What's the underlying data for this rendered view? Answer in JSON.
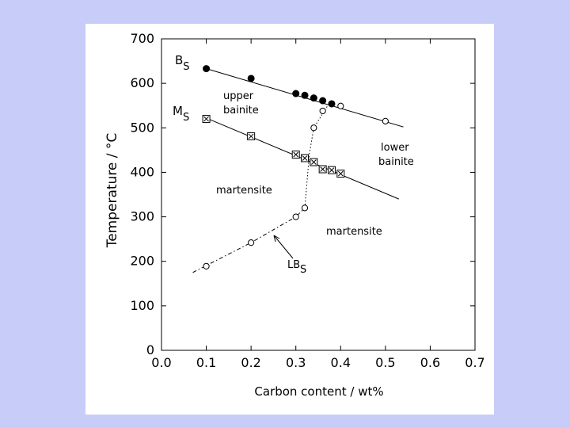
{
  "chart_data": {
    "type": "scatter",
    "xlabel": "Carbon content / wt%",
    "ylabel": "Temperature / °C",
    "xlim": [
      0.0,
      0.7
    ],
    "ylim": [
      0,
      700
    ],
    "x_ticks": [
      "0.0",
      "0.1",
      "0.2",
      "0.3",
      "0.4",
      "0.5",
      "0.6",
      "0.7"
    ],
    "y_ticks": [
      "0",
      "100",
      "200",
      "300",
      "400",
      "500",
      "600",
      "700"
    ],
    "grid": false,
    "curve_labels": [
      {
        "main": "B",
        "sub": "S"
      },
      {
        "main": "M",
        "sub": "S"
      },
      {
        "main": "LB",
        "sub": "S"
      }
    ],
    "region_labels": {
      "upper_bainite": [
        "upper",
        "bainite"
      ],
      "lower_bainite": [
        "lower",
        "bainite"
      ],
      "martensite_left": "martensite",
      "martensite_right": "martensite"
    },
    "series": [
      {
        "marker": "filled-circle",
        "points": [
          [
            0.1,
            633
          ],
          [
            0.2,
            611
          ],
          [
            0.3,
            577
          ],
          [
            0.32,
            573
          ],
          [
            0.34,
            567
          ],
          [
            0.36,
            561
          ],
          [
            0.38,
            554
          ]
        ]
      },
      {
        "marker": "open-circle",
        "points": [
          [
            0.4,
            549
          ],
          [
            0.5,
            515
          ]
        ]
      },
      {
        "marker": "boxed-x",
        "points": [
          [
            0.1,
            520
          ],
          [
            0.2,
            481
          ],
          [
            0.3,
            440
          ],
          [
            0.32,
            432
          ],
          [
            0.34,
            423
          ],
          [
            0.36,
            407
          ],
          [
            0.38,
            405
          ],
          [
            0.4,
            397
          ]
        ]
      },
      {
        "marker": "open-circle",
        "points": [
          [
            0.1,
            189
          ],
          [
            0.2,
            242
          ],
          [
            0.3,
            300
          ],
          [
            0.32,
            320
          ],
          [
            0.34,
            500
          ],
          [
            0.36,
            538
          ]
        ]
      }
    ],
    "lines": [
      {
        "style": "solid",
        "points": [
          [
            0.1,
            633
          ],
          [
            0.54,
            502
          ]
        ]
      },
      {
        "style": "solid",
        "points": [
          [
            0.1,
            522
          ],
          [
            0.53,
            340
          ]
        ]
      },
      {
        "style": "dotted",
        "points": [
          [
            0.32,
            320
          ],
          [
            0.33,
            440
          ],
          [
            0.34,
            500
          ],
          [
            0.37,
            548
          ]
        ]
      },
      {
        "style": "dashdot",
        "points": [
          [
            0.07,
            175
          ],
          [
            0.2,
            242
          ],
          [
            0.3,
            300
          ],
          [
            0.32,
            320
          ]
        ]
      }
    ]
  }
}
